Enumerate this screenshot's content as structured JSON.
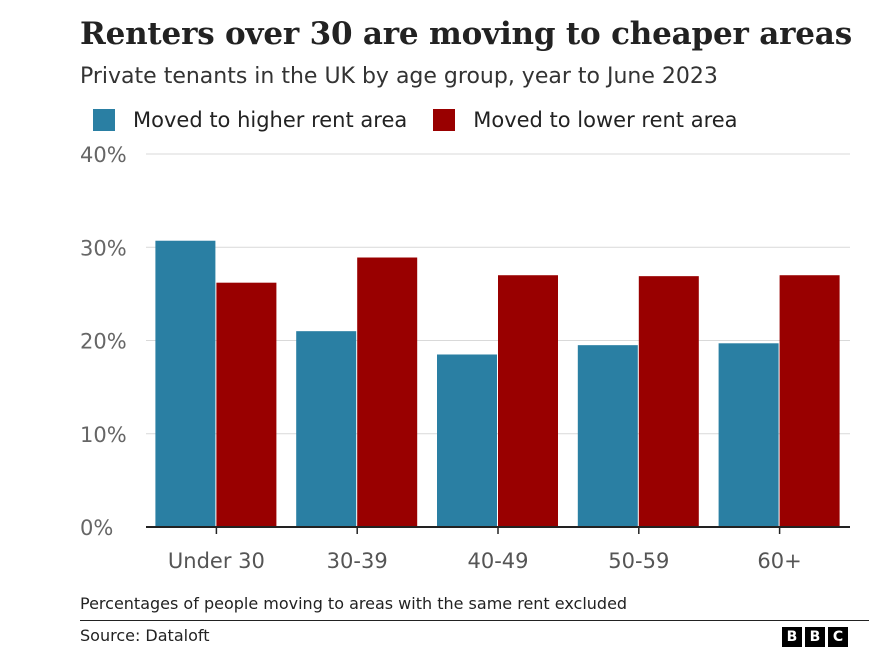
{
  "title": "Renters over 30 are moving to cheaper areas",
  "subtitle": "Private tenants in the UK by age group, year to June 2023",
  "note": "Percentages of people moving to areas with the same rent excluded",
  "source": "Source: Dataloft",
  "logo": {
    "letters": [
      "B",
      "B",
      "C"
    ]
  },
  "colors": {
    "higher": "#2a7fa3",
    "lower": "#990000",
    "grid": "#d9d9d9",
    "axis": "#222222",
    "tick_text": "#666666",
    "category_text": "#555555"
  },
  "chart_data": {
    "type": "bar",
    "categories": [
      "Under 30",
      "30-39",
      "40-49",
      "50-59",
      "60+"
    ],
    "series": [
      {
        "name": "Moved to higher rent area",
        "values": [
          30.7,
          21.0,
          18.5,
          19.5,
          19.7
        ]
      },
      {
        "name": "Moved to lower rent area",
        "values": [
          26.2,
          28.9,
          27.0,
          26.9,
          27.0
        ]
      }
    ],
    "ylim": [
      0,
      40
    ],
    "yticks": [
      0,
      10,
      20,
      30,
      40
    ],
    "ytick_labels": [
      "0%",
      "10%",
      "20%",
      "30%",
      "40%"
    ],
    "grid": true,
    "legend_position": "top"
  }
}
